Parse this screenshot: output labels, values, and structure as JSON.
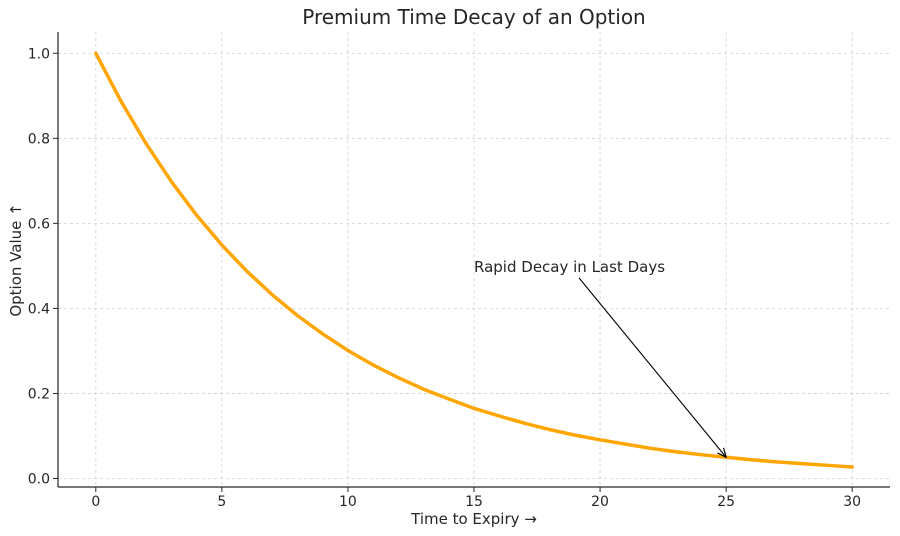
{
  "chart_data": {
    "type": "line",
    "title": "Premium Time Decay of an Option",
    "xlabel": "Time to Expiry →",
    "ylabel": "Option Value ↑",
    "xlim": [
      -1.5,
      31.5
    ],
    "ylim": [
      -0.02,
      1.05
    ],
    "xticks": [
      "0",
      "5",
      "10",
      "15",
      "20",
      "25",
      "30"
    ],
    "yticks": [
      "0.0",
      "0.2",
      "0.4",
      "0.6",
      "0.8",
      "1.0"
    ],
    "grid": true,
    "series": [
      {
        "color": "#FFA500",
        "x": [
          0,
          1,
          2,
          3,
          4,
          5,
          6,
          7,
          8,
          9,
          10,
          11,
          12,
          13,
          14,
          15,
          16,
          17,
          18,
          19,
          20,
          21,
          22,
          23,
          24,
          25,
          26,
          27,
          28,
          29,
          30
        ],
        "y": [
          1.0,
          0.887,
          0.787,
          0.698,
          0.619,
          0.549,
          0.487,
          0.432,
          0.383,
          0.34,
          0.301,
          0.267,
          0.237,
          0.21,
          0.187,
          0.165,
          0.147,
          0.13,
          0.115,
          0.102,
          0.091,
          0.081,
          0.071,
          0.063,
          0.056,
          0.05,
          0.044,
          0.039,
          0.035,
          0.031,
          0.027
        ]
      }
    ],
    "annotations": [
      {
        "text": "Rapid Decay in Last Days",
        "text_x": 15,
        "text_y": 0.5,
        "arrow_x": 25,
        "arrow_y": 0.05
      }
    ]
  }
}
